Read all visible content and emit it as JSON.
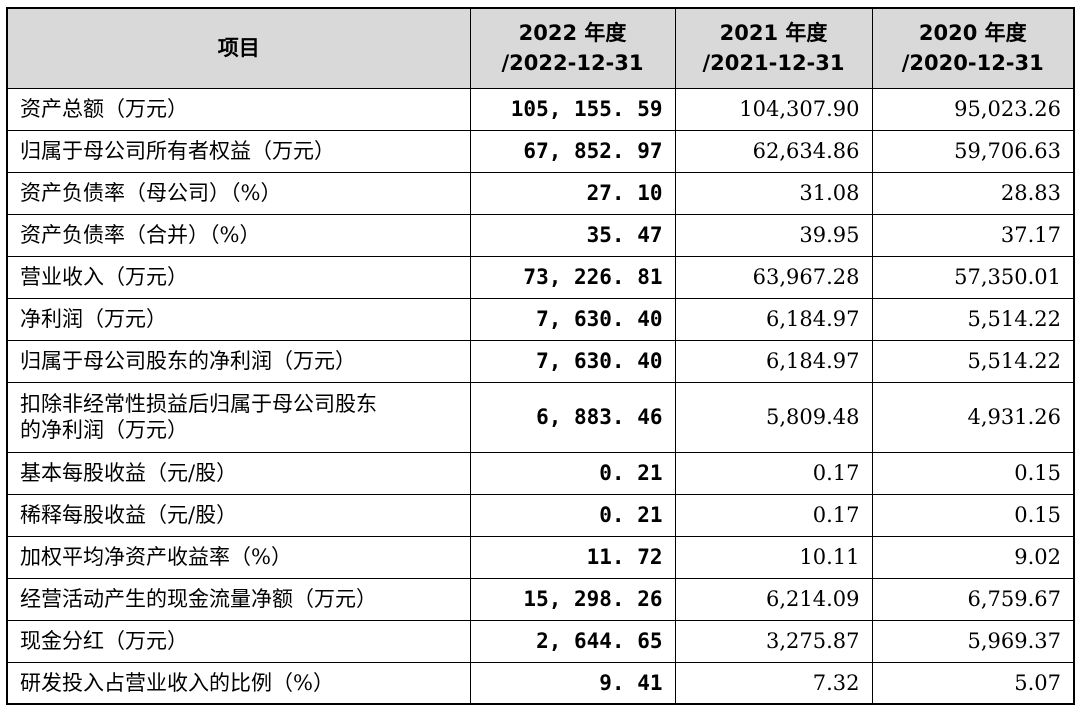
{
  "table": {
    "headers": [
      {
        "lines": [
          "项目"
        ]
      },
      {
        "lines": [
          "2022 年度",
          "/2022-12-31"
        ]
      },
      {
        "lines": [
          "2021 年度",
          "/2021-12-31"
        ]
      },
      {
        "lines": [
          "2020 年度",
          "/2020-12-31"
        ]
      }
    ],
    "rows": [
      {
        "label": [
          "资产总额（万元）"
        ],
        "v2022": "105, 155. 59",
        "v2021": "104,307.90",
        "v2020": "95,023.26"
      },
      {
        "label": [
          "归属于母公司所有者权益（万元）"
        ],
        "v2022": "67, 852. 97",
        "v2021": "62,634.86",
        "v2020": "59,706.63"
      },
      {
        "label": [
          "资产负债率（母公司）（%）"
        ],
        "v2022": "27. 10",
        "v2021": "31.08",
        "v2020": "28.83"
      },
      {
        "label": [
          "资产负债率（合并）（%）"
        ],
        "v2022": "35. 47",
        "v2021": "39.95",
        "v2020": "37.17"
      },
      {
        "label": [
          "营业收入（万元）"
        ],
        "v2022": "73, 226. 81",
        "v2021": "63,967.28",
        "v2020": "57,350.01"
      },
      {
        "label": [
          "净利润（万元）"
        ],
        "v2022": "7, 630. 40",
        "v2021": "6,184.97",
        "v2020": "5,514.22"
      },
      {
        "label": [
          "归属于母公司股东的净利润（万元）"
        ],
        "v2022": "7, 630. 40",
        "v2021": "6,184.97",
        "v2020": "5,514.22"
      },
      {
        "label": [
          "扣除非经常性损益后归属于母公司股东",
          "的净利润（万元）"
        ],
        "v2022": "6, 883. 46",
        "v2021": "5,809.48",
        "v2020": "4,931.26"
      },
      {
        "label": [
          "基本每股收益（元/股）"
        ],
        "v2022": "0. 21",
        "v2021": "0.17",
        "v2020": "0.15"
      },
      {
        "label": [
          "稀释每股收益（元/股）"
        ],
        "v2022": "0. 21",
        "v2021": "0.17",
        "v2020": "0.15"
      },
      {
        "label": [
          "加权平均净资产收益率（%）"
        ],
        "v2022": "11. 72",
        "v2021": "10.11",
        "v2020": "9.02"
      },
      {
        "label": [
          "经营活动产生的现金流量净额（万元）"
        ],
        "v2022": "15, 298. 26",
        "v2021": "6,214.09",
        "v2020": "6,759.67"
      },
      {
        "label": [
          "现金分红（万元）"
        ],
        "v2022": "2, 644. 65",
        "v2021": "3,275.87",
        "v2020": "5,969.37"
      },
      {
        "label": [
          "研发投入占营业收入的比例（%）"
        ],
        "v2022": "9. 41",
        "v2021": "7.32",
        "v2020": "5.07"
      }
    ]
  }
}
